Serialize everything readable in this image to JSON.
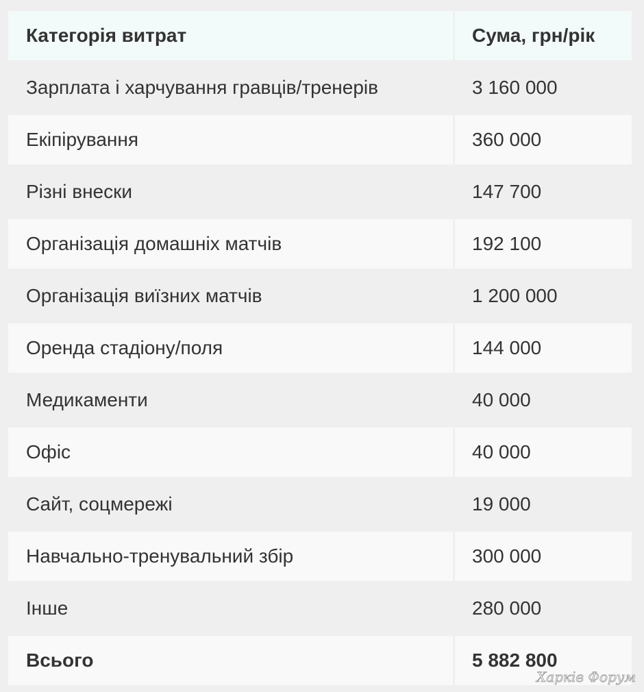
{
  "table": {
    "headers": [
      "Категорія витрат",
      "Сума, грн/рік"
    ],
    "rows": [
      [
        "Зарплата і харчування гравців/тренерів",
        "3 160 000"
      ],
      [
        "Екіпірування",
        "360 000"
      ],
      [
        "Різні внески",
        "147 700"
      ],
      [
        "Організація домашніх матчів",
        "192 100"
      ],
      [
        "Організація виїзних матчів",
        "1 200 000"
      ],
      [
        "Оренда стадіону/поля",
        "144 000"
      ],
      [
        "Медикаменти",
        "40 000"
      ],
      [
        "Офіс",
        "40 000"
      ],
      [
        "Сайт, соцмережі",
        "19 000"
      ],
      [
        "Навчально-тренувальний збір",
        "300 000"
      ],
      [
        "Інше",
        "280 000"
      ]
    ],
    "total": [
      "Всього",
      "5 882 800"
    ]
  },
  "watermark": "Харків Форум"
}
